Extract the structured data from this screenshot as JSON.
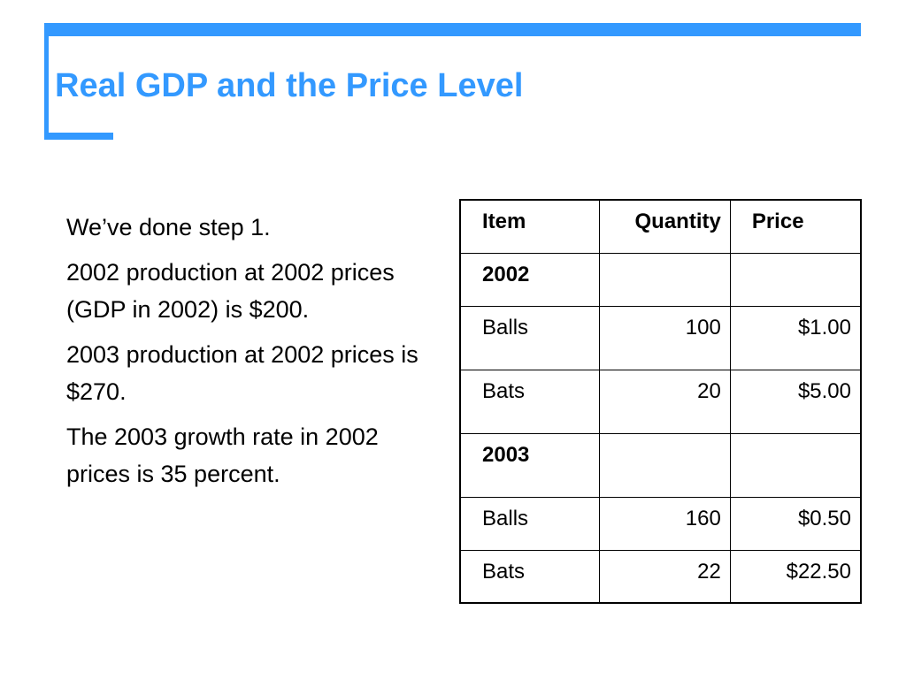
{
  "slide": {
    "title": "Real GDP and the Price Level",
    "accent_color": "#3399ff"
  },
  "bullets": [
    "We’ve done step 1.",
    "2002 production at 2002 prices (GDP in 2002) is $200.",
    "2003 production at 2002 prices is $270.",
    "The 2003 growth rate in 2002 prices is 35 percent."
  ],
  "table": {
    "headers": [
      "Item",
      "Quantity",
      "Price"
    ],
    "rows": [
      {
        "item": "2002",
        "quantity": "",
        "price": ""
      },
      {
        "item": "Balls",
        "quantity": "100",
        "price": "$1.00"
      },
      {
        "item": "Bats",
        "quantity": "20",
        "price": "$5.00"
      },
      {
        "item": "2003",
        "quantity": "",
        "price": ""
      },
      {
        "item": "Balls",
        "quantity": "160",
        "price": "$0.50"
      },
      {
        "item": "Bats",
        "quantity": "22",
        "price": "$22.50"
      }
    ]
  }
}
